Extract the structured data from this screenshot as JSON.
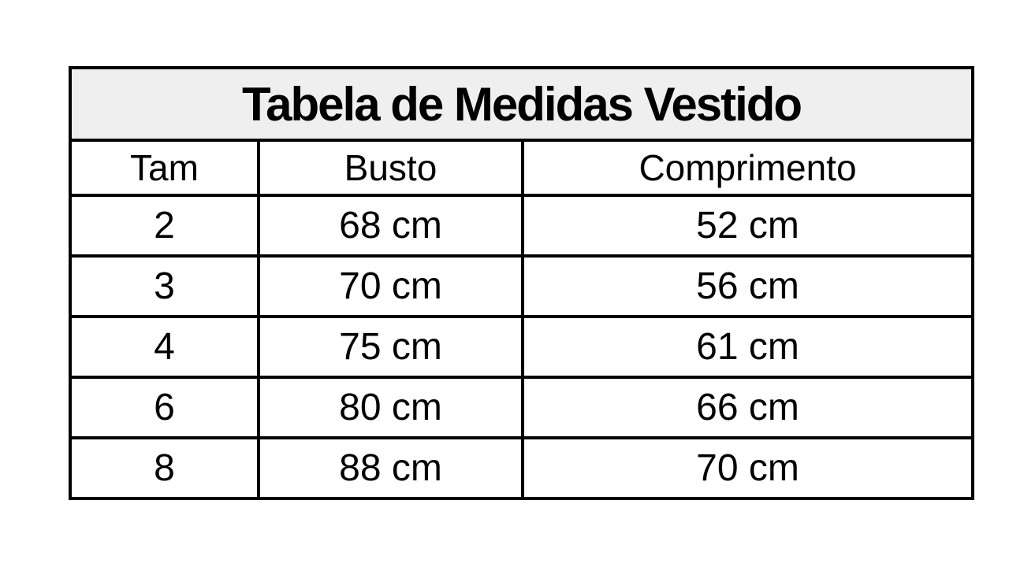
{
  "chart_data": {
    "type": "table",
    "title": "Tabela de Medidas Vestido",
    "columns": [
      "Tam",
      "Busto",
      "Comprimento"
    ],
    "rows": [
      [
        "2",
        "68 cm",
        "52 cm"
      ],
      [
        "3",
        "70 cm",
        "56 cm"
      ],
      [
        "4",
        "75 cm",
        "61 cm"
      ],
      [
        "6",
        "80 cm",
        "66 cm"
      ],
      [
        "8",
        "88 cm",
        "70 cm"
      ]
    ],
    "units": "cm",
    "layout": {
      "title_band_background": "#efefef",
      "border_color": "#000000",
      "page_background": "#ffffff",
      "grid": "on"
    }
  }
}
